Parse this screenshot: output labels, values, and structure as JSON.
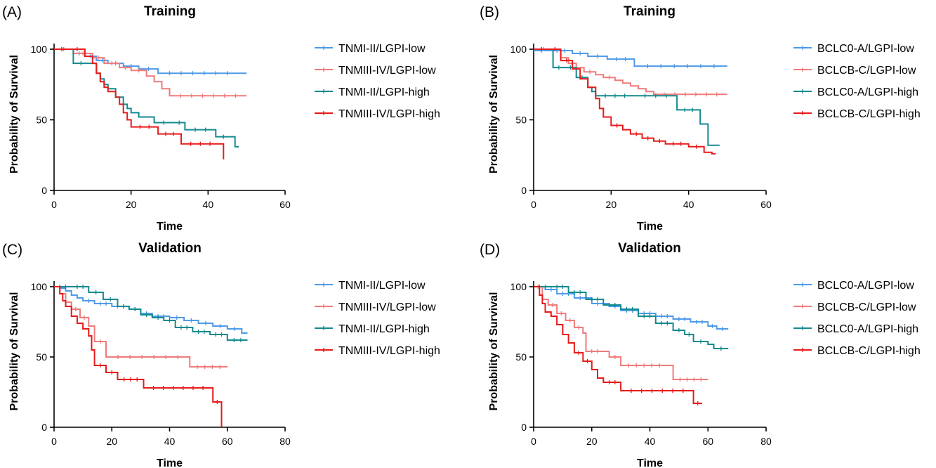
{
  "chart_data": [
    {
      "type": "line",
      "label": "(A)",
      "title": "Training",
      "xlabel": "Time",
      "ylabel": "Probability of Survival",
      "xlim": [
        0,
        60
      ],
      "ylim": [
        0,
        100
      ],
      "xticks": [
        0,
        20,
        40,
        60
      ],
      "yticks": [
        0,
        50,
        100
      ],
      "series": [
        {
          "name": "TNMI-II/LGPI-low",
          "color": "#4e9ae8",
          "x": [
            0,
            5,
            8,
            11,
            14,
            18,
            22,
            27,
            48,
            50
          ],
          "y": [
            100,
            97,
            95,
            92,
            90,
            88,
            86,
            83,
            83,
            83
          ]
        },
        {
          "name": "TNMIII-IV/LGPI-low",
          "color": "#ef7b7b",
          "x": [
            0,
            5,
            10,
            13,
            17,
            20,
            24,
            26,
            28,
            30,
            50
          ],
          "y": [
            100,
            97,
            94,
            90,
            87,
            85,
            81,
            77,
            72,
            67,
            67
          ]
        },
        {
          "name": "TNMI-II/LGPI-high",
          "color": "#138a8f",
          "x": [
            0,
            4,
            5,
            9,
            11,
            12,
            13,
            14,
            16,
            18,
            19,
            20,
            22,
            24,
            26,
            31,
            34,
            42,
            46,
            47,
            48
          ],
          "y": [
            100,
            100,
            90,
            90,
            83,
            79,
            75,
            72,
            66,
            61,
            58,
            55,
            52,
            52,
            48,
            48,
            43,
            38,
            38,
            31,
            31
          ]
        },
        {
          "name": "TNMIII-IV/LGPI-high",
          "color": "#e81a1a",
          "x": [
            0,
            4,
            8,
            10,
            11,
            12,
            13,
            14,
            16,
            17,
            18,
            19,
            20,
            27,
            33,
            43,
            44,
            44
          ],
          "y": [
            100,
            100,
            95,
            90,
            83,
            77,
            73,
            70,
            66,
            61,
            55,
            50,
            45,
            40,
            33,
            33,
            28,
            22
          ]
        }
      ]
    },
    {
      "type": "line",
      "label": "(B)",
      "title": "Training",
      "xlabel": "Time",
      "ylabel": "Probability of Survival",
      "xlim": [
        0,
        60
      ],
      "ylim": [
        0,
        100
      ],
      "xticks": [
        0,
        20,
        40,
        60
      ],
      "yticks": [
        0,
        50,
        100
      ],
      "series": [
        {
          "name": "BCLC0-A/LGPI-low",
          "color": "#4e9ae8",
          "x": [
            0,
            4,
            10,
            14,
            19,
            26,
            50
          ],
          "y": [
            99,
            99,
            97,
            95,
            93,
            88,
            88
          ]
        },
        {
          "name": "BCLCB-C/LGPI-low",
          "color": "#ef7b7b",
          "x": [
            0,
            5,
            7,
            9,
            11,
            13,
            16,
            18,
            21,
            23,
            25,
            27,
            29,
            31,
            50
          ],
          "y": [
            100,
            100,
            94,
            90,
            87,
            84,
            82,
            80,
            78,
            76,
            74,
            72,
            70,
            68,
            68
          ]
        },
        {
          "name": "BCLC0-A/LGPI-high",
          "color": "#138a8f",
          "x": [
            0,
            4,
            5,
            8,
            11,
            14,
            15,
            16,
            26,
            37,
            43,
            45,
            46,
            48
          ],
          "y": [
            100,
            100,
            87,
            87,
            80,
            73,
            70,
            67,
            67,
            57,
            47,
            32,
            32,
            32
          ]
        },
        {
          "name": "BCLCB-C/LGPI-high",
          "color": "#e81a1a",
          "x": [
            0,
            4,
            7,
            10,
            12,
            14,
            16,
            17,
            18,
            20,
            23,
            25,
            28,
            31,
            34,
            40,
            44,
            46,
            47
          ],
          "y": [
            100,
            100,
            92,
            86,
            79,
            73,
            65,
            58,
            52,
            46,
            43,
            40,
            37,
            35,
            33,
            31,
            27,
            26,
            26
          ]
        }
      ]
    },
    {
      "type": "line",
      "label": "(C)",
      "title": "Validation",
      "xlabel": "Time",
      "ylabel": "Probability of Survival",
      "xlim": [
        0,
        80
      ],
      "ylim": [
        0,
        100
      ],
      "xticks": [
        0,
        20,
        40,
        60,
        80
      ],
      "yticks": [
        0,
        50,
        100
      ],
      "series": [
        {
          "name": "TNMI-II/LGPI-low",
          "color": "#4e9ae8",
          "x": [
            0,
            2,
            4,
            6,
            8,
            10,
            14,
            20,
            26,
            30,
            34,
            40,
            45,
            50,
            55,
            60,
            65,
            67
          ],
          "y": [
            100,
            99,
            97,
            94,
            92,
            90,
            88,
            86,
            84,
            81,
            79,
            78,
            76,
            74,
            72,
            70,
            67,
            67
          ]
        },
        {
          "name": "TNMIII-IV/LGPI-low",
          "color": "#ef7b7b",
          "x": [
            0,
            2,
            4,
            6,
            9,
            12,
            14,
            18,
            47,
            60
          ],
          "y": [
            100,
            95,
            89,
            84,
            78,
            72,
            61,
            50,
            43,
            43
          ]
        },
        {
          "name": "TNMI-II/LGPI-high",
          "color": "#138a8f",
          "x": [
            0,
            6,
            12,
            17,
            22,
            26,
            30,
            34,
            38,
            42,
            48,
            54,
            60,
            67
          ],
          "y": [
            100,
            100,
            96,
            91,
            86,
            84,
            80,
            78,
            76,
            71,
            68,
            66,
            62,
            62
          ]
        },
        {
          "name": "TNMIII-IV/LGPI-high",
          "color": "#e81a1a",
          "x": [
            0,
            2,
            3,
            4,
            6,
            8,
            10,
            12,
            13,
            14,
            18,
            22,
            31,
            55,
            58
          ],
          "y": [
            100,
            95,
            90,
            86,
            79,
            74,
            70,
            65,
            55,
            44,
            39,
            34,
            28,
            18,
            0
          ]
        }
      ]
    },
    {
      "type": "line",
      "label": "(D)",
      "title": "Validation",
      "xlabel": "Time",
      "ylabel": "Probability of Survival",
      "xlim": [
        0,
        80
      ],
      "ylim": [
        0,
        100
      ],
      "xticks": [
        0,
        20,
        40,
        60,
        80
      ],
      "yticks": [
        0,
        50,
        100
      ],
      "series": [
        {
          "name": "BCLC0-A/LGPI-low",
          "color": "#4e9ae8",
          "x": [
            0,
            4,
            8,
            14,
            20,
            26,
            30,
            36,
            42,
            48,
            54,
            60,
            63,
            67
          ],
          "y": [
            100,
            98,
            95,
            92,
            88,
            86,
            83,
            81,
            79,
            77,
            75,
            72,
            70,
            70
          ]
        },
        {
          "name": "BCLCB-C/LGPI-low",
          "color": "#ef7b7b",
          "x": [
            0,
            3,
            5,
            8,
            11,
            14,
            17,
            18,
            24,
            26,
            30,
            46,
            48,
            60
          ],
          "y": [
            100,
            91,
            87,
            81,
            76,
            71,
            67,
            54,
            54,
            50,
            44,
            44,
            34,
            34
          ]
        },
        {
          "name": "BCLC0-A/LGPI-high",
          "color": "#138a8f",
          "x": [
            0,
            6,
            12,
            18,
            24,
            30,
            36,
            42,
            48,
            52,
            55,
            60,
            62,
            67
          ],
          "y": [
            100,
            100,
            96,
            91,
            87,
            84,
            79,
            74,
            69,
            66,
            61,
            59,
            56,
            56
          ]
        },
        {
          "name": "BCLCB-C/LGPI-high",
          "color": "#e81a1a",
          "x": [
            0,
            2,
            3,
            4,
            6,
            8,
            10,
            12,
            14,
            17,
            20,
            22,
            24,
            30,
            55,
            58
          ],
          "y": [
            100,
            94,
            88,
            82,
            79,
            73,
            66,
            60,
            53,
            47,
            41,
            35,
            32,
            26,
            17,
            17
          ]
        }
      ]
    }
  ]
}
